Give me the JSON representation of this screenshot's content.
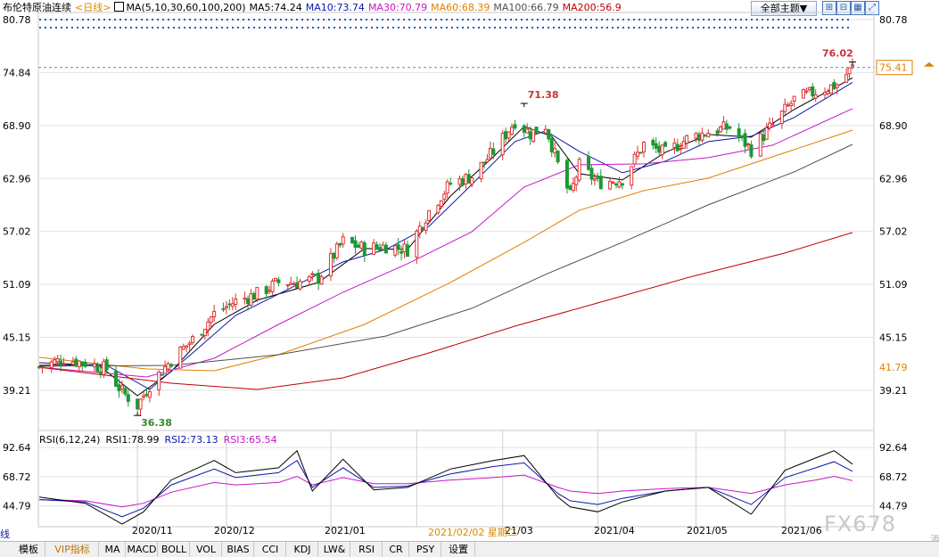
{
  "header": {
    "title": "布伦特原油连续",
    "period": "<日线>",
    "ma_legend": [
      {
        "label": "MA(5,10,30,60,100,200)",
        "color": "#000000"
      },
      {
        "label": "MA5:74.24",
        "color": "#000000"
      },
      {
        "label": "MA10:73.74",
        "color": "#0b18a8"
      },
      {
        "label": "MA30:70.79",
        "color": "#c716c7"
      },
      {
        "label": "MA60:68.39",
        "color": "#e08000"
      },
      {
        "label": "MA100:66.79",
        "color": "#505050"
      },
      {
        "label": "MA200:56.9",
        "color": "#c00000"
      }
    ],
    "theme_button": "全部主题▼",
    "tool_icons": [
      "zoom-in-icon",
      "zoom-out-icon",
      "grid-icon",
      "expand-icon",
      "fullscreen-icon"
    ]
  },
  "price_axis": {
    "left_ticks": [
      "80.78",
      "74.84",
      "68.90",
      "62.96",
      "57.02",
      "51.09",
      "45.15",
      "39.21"
    ],
    "right_ticks": [
      "80.78",
      "68.90",
      "62.96",
      "57.02",
      "51.09",
      "45.15",
      "39.21"
    ],
    "current_price_label": "75.41",
    "ma_edge_label": "41.79"
  },
  "rsi_legend": [
    {
      "label": "RSI(6,12,24)",
      "color": "#000000"
    },
    {
      "label": "RSI1:78.99",
      "color": "#000000"
    },
    {
      "label": "RSI2:73.13",
      "color": "#0b18a8"
    },
    {
      "label": "RSI3:65.54",
      "color": "#c716c7"
    }
  ],
  "rsi_axis": {
    "left_ticks": [
      "92.64",
      "68.72",
      "44.79"
    ],
    "right_ticks": [
      "92.64",
      "68.72",
      "44.79"
    ]
  },
  "x_axis": {
    "ticks": [
      "2020/11",
      "2020/12",
      "2021/01",
      "21/03",
      "2021/04",
      "2021/05",
      "2021/06"
    ],
    "hover_label": "2021/02/02 星期二"
  },
  "bottom_tabs": [
    "模板",
    "VIP指标",
    "MA",
    "MACD",
    "BOLL",
    "VOL",
    "BIAS",
    "CCI",
    "KDJ",
    "LW&",
    "RSI",
    "CR",
    "PSY",
    "设置"
  ],
  "bottom_edge_left": "线",
  "bottom_edge_right": "添",
  "watermark": "FX678",
  "colors": {
    "up": "#e03030",
    "down": "#1a9a30",
    "ma5": "#000000",
    "ma10": "#0b18a8",
    "ma30": "#c716c7",
    "ma60": "#e08000",
    "ma100": "#505050",
    "ma200": "#c00000",
    "dotted": "#1a5fb0",
    "grid": "#e2e2e2"
  },
  "chart_data": {
    "type": "candlestick",
    "title": "布伦特原油连续",
    "ylim": [
      36.0,
      80.78
    ],
    "high_annotation": {
      "value": "76.02",
      "date": "2021/06/23"
    },
    "mid_high_annotation": {
      "value": "71.38",
      "date": "2021/03/08"
    },
    "low_annotation": {
      "value": "36.38",
      "date": "2020/11/02"
    },
    "price_path": [
      [
        "2020/10/01",
        41.8
      ],
      [
        "2020/10/09",
        42.7
      ],
      [
        "2020/10/16",
        42.3
      ],
      [
        "2020/10/23",
        41.6
      ],
      [
        "2020/10/28",
        39.0
      ],
      [
        "2020/11/02",
        37.5
      ],
      [
        "2020/11/06",
        39.8
      ],
      [
        "2020/11/13",
        42.6
      ],
      [
        "2020/11/20",
        44.9
      ],
      [
        "2020/11/27",
        47.8
      ],
      [
        "2020/12/04",
        49.2
      ],
      [
        "2020/12/11",
        50.0
      ],
      [
        "2020/12/18",
        51.3
      ],
      [
        "2020/12/24",
        51.3
      ],
      [
        "2020/12/31",
        51.8
      ],
      [
        "2021/01/08",
        55.9
      ],
      [
        "2021/01/15",
        55.1
      ],
      [
        "2021/01/22",
        55.4
      ],
      [
        "2021/01/29",
        55.0
      ],
      [
        "2021/02/05",
        59.3
      ],
      [
        "2021/02/12",
        62.4
      ],
      [
        "2021/02/19",
        63.2
      ],
      [
        "2021/02/26",
        66.0
      ],
      [
        "2021/03/05",
        69.4
      ],
      [
        "2021/03/10",
        68.0
      ],
      [
        "2021/03/15",
        68.9
      ],
      [
        "2021/03/19",
        64.5
      ],
      [
        "2021/03/23",
        61.0
      ],
      [
        "2021/03/26",
        64.4
      ],
      [
        "2021/04/01",
        62.5
      ],
      [
        "2021/04/09",
        62.9
      ],
      [
        "2021/04/16",
        66.8
      ],
      [
        "2021/04/23",
        65.8
      ],
      [
        "2021/04/30",
        67.4
      ],
      [
        "2021/05/07",
        68.2
      ],
      [
        "2021/05/14",
        68.7
      ],
      [
        "2021/05/21",
        66.2
      ],
      [
        "2021/05/28",
        69.0
      ],
      [
        "2021/06/04",
        71.8
      ],
      [
        "2021/06/11",
        72.7
      ],
      [
        "2021/06/18",
        73.5
      ],
      [
        "2021/06/23",
        75.4
      ]
    ],
    "ma_paths": {
      "MA5": [
        [
          "2020/10/01",
          42.0
        ],
        [
          "2020/10/20",
          42.1
        ],
        [
          "2020/11/02",
          38.6
        ],
        [
          "2020/11/13",
          41.3
        ],
        [
          "2020/11/27",
          46.6
        ],
        [
          "2020/12/11",
          49.3
        ],
        [
          "2020/12/31",
          51.3
        ],
        [
          "2021/01/15",
          55.1
        ],
        [
          "2021/01/29",
          55.0
        ],
        [
          "2021/02/12",
          61.0
        ],
        [
          "2021/02/26",
          65.4
        ],
        [
          "2021/03/08",
          68.8
        ],
        [
          "2021/03/17",
          67.7
        ],
        [
          "2021/03/26",
          63.5
        ],
        [
          "2021/04/09",
          62.8
        ],
        [
          "2021/04/23",
          65.9
        ],
        [
          "2021/05/07",
          67.9
        ],
        [
          "2021/05/21",
          67.6
        ],
        [
          "2021/06/04",
          70.7
        ],
        [
          "2021/06/23",
          74.24
        ]
      ],
      "MA10": [
        [
          "2020/10/01",
          42.3
        ],
        [
          "2020/10/23",
          42.0
        ],
        [
          "2020/11/06",
          39.3
        ],
        [
          "2020/11/20",
          43.4
        ],
        [
          "2020/12/04",
          47.6
        ],
        [
          "2020/12/18",
          50.0
        ],
        [
          "2021/01/08",
          53.6
        ],
        [
          "2021/01/22",
          55.0
        ],
        [
          "2021/02/05",
          57.6
        ],
        [
          "2021/02/19",
          62.3
        ],
        [
          "2021/03/05",
          67.1
        ],
        [
          "2021/03/15",
          68.3
        ],
        [
          "2021/03/26",
          66.0
        ],
        [
          "2021/04/09",
          63.6
        ],
        [
          "2021/04/23",
          64.9
        ],
        [
          "2021/05/07",
          67.1
        ],
        [
          "2021/05/21",
          67.7
        ],
        [
          "2021/06/04",
          69.8
        ],
        [
          "2021/06/23",
          73.74
        ]
      ],
      "MA30": [
        [
          "2020/10/01",
          41.8
        ],
        [
          "2020/11/05",
          40.7
        ],
        [
          "2020/11/27",
          42.8
        ],
        [
          "2020/12/18",
          46.6
        ],
        [
          "2021/01/08",
          50.2
        ],
        [
          "2021/01/29",
          53.4
        ],
        [
          "2021/02/19",
          57.0
        ],
        [
          "2021/03/08",
          62.0
        ],
        [
          "2021/03/26",
          64.5
        ],
        [
          "2021/04/16",
          64.6
        ],
        [
          "2021/05/07",
          65.3
        ],
        [
          "2021/05/28",
          66.7
        ],
        [
          "2021/06/23",
          70.79
        ]
      ],
      "MA60": [
        [
          "2020/10/01",
          42.9
        ],
        [
          "2020/11/05",
          41.6
        ],
        [
          "2020/11/27",
          41.4
        ],
        [
          "2020/12/18",
          43.2
        ],
        [
          "2021/01/15",
          46.6
        ],
        [
          "2021/02/12",
          51.3
        ],
        [
          "2021/03/08",
          55.8
        ],
        [
          "2021/03/26",
          59.4
        ],
        [
          "2021/04/16",
          61.6
        ],
        [
          "2021/05/07",
          63.0
        ],
        [
          "2021/05/28",
          65.4
        ],
        [
          "2021/06/23",
          68.39
        ]
      ],
      "MA100": [
        [
          "2020/10/01",
          41.9
        ],
        [
          "2020/11/13",
          42.0
        ],
        [
          "2020/12/18",
          43.2
        ],
        [
          "2021/01/22",
          45.3
        ],
        [
          "2021/02/19",
          48.4
        ],
        [
          "2021/03/15",
          52.2
        ],
        [
          "2021/04/09",
          55.8
        ],
        [
          "2021/05/07",
          60.0
        ],
        [
          "2021/06/04",
          63.7
        ],
        [
          "2021/06/23",
          66.79
        ]
      ],
      "MA200": [
        [
          "2020/10/01",
          41.79
        ],
        [
          "2020/11/13",
          40.0
        ],
        [
          "2020/12/11",
          39.3
        ],
        [
          "2021/01/08",
          40.6
        ],
        [
          "2021/02/05",
          43.4
        ],
        [
          "2021/03/05",
          46.4
        ],
        [
          "2021/04/01",
          49.0
        ],
        [
          "2021/05/01",
          51.9
        ],
        [
          "2021/06/01",
          54.6
        ],
        [
          "2021/06/23",
          56.9
        ]
      ]
    },
    "rsi": {
      "ylim": [
        30,
        100
      ],
      "RSI1": [
        [
          "2020/10/01",
          52
        ],
        [
          "2020/10/16",
          47
        ],
        [
          "2020/10/28",
          30
        ],
        [
          "2020/11/04",
          40
        ],
        [
          "2020/11/13",
          66
        ],
        [
          "2020/11/27",
          82
        ],
        [
          "2020/12/04",
          72
        ],
        [
          "2020/12/18",
          76
        ],
        [
          "2020/12/24",
          90
        ],
        [
          "2020/12/29",
          57
        ],
        [
          "2021/01/08",
          83
        ],
        [
          "2021/01/18",
          58
        ],
        [
          "2021/01/29",
          60
        ],
        [
          "2021/02/12",
          75
        ],
        [
          "2021/02/26",
          82
        ],
        [
          "2021/03/08",
          86
        ],
        [
          "2021/03/19",
          52
        ],
        [
          "2021/03/23",
          44
        ],
        [
          "2021/04/01",
          40
        ],
        [
          "2021/04/09",
          48
        ],
        [
          "2021/04/23",
          57
        ],
        [
          "2021/05/07",
          60
        ],
        [
          "2021/05/21",
          38
        ],
        [
          "2021/06/01",
          74
        ],
        [
          "2021/06/11",
          84
        ],
        [
          "2021/06/17",
          90
        ],
        [
          "2021/06/23",
          78.99
        ]
      ],
      "RSI2": [
        [
          "2020/10/01",
          50
        ],
        [
          "2020/10/16",
          48
        ],
        [
          "2020/10/28",
          36
        ],
        [
          "2020/11/04",
          43
        ],
        [
          "2020/11/13",
          62
        ],
        [
          "2020/11/27",
          75
        ],
        [
          "2020/12/04",
          68
        ],
        [
          "2020/12/18",
          72
        ],
        [
          "2020/12/24",
          82
        ],
        [
          "2020/12/29",
          60
        ],
        [
          "2021/01/08",
          76
        ],
        [
          "2021/01/18",
          60
        ],
        [
          "2021/01/29",
          61
        ],
        [
          "2021/02/12",
          71
        ],
        [
          "2021/02/26",
          77
        ],
        [
          "2021/03/08",
          80
        ],
        [
          "2021/03/19",
          55
        ],
        [
          "2021/03/23",
          49
        ],
        [
          "2021/04/01",
          46
        ],
        [
          "2021/04/09",
          51
        ],
        [
          "2021/04/23",
          57
        ],
        [
          "2021/05/07",
          60
        ],
        [
          "2021/05/21",
          46
        ],
        [
          "2021/06/01",
          68
        ],
        [
          "2021/06/11",
          76
        ],
        [
          "2021/06/17",
          81
        ],
        [
          "2021/06/23",
          73.13
        ]
      ],
      "RSI3": [
        [
          "2020/10/01",
          50
        ],
        [
          "2020/10/16",
          49
        ],
        [
          "2020/10/28",
          44
        ],
        [
          "2020/11/04",
          47
        ],
        [
          "2020/11/13",
          56
        ],
        [
          "2020/11/27",
          64
        ],
        [
          "2020/12/04",
          62
        ],
        [
          "2020/12/18",
          64
        ],
        [
          "2020/12/24",
          69
        ],
        [
          "2020/12/29",
          62
        ],
        [
          "2021/01/08",
          68
        ],
        [
          "2021/01/18",
          63
        ],
        [
          "2021/01/29",
          63
        ],
        [
          "2021/02/12",
          66
        ],
        [
          "2021/02/26",
          68
        ],
        [
          "2021/03/08",
          70
        ],
        [
          "2021/03/19",
          60
        ],
        [
          "2021/03/23",
          57
        ],
        [
          "2021/04/01",
          55
        ],
        [
          "2021/04/09",
          57
        ],
        [
          "2021/04/23",
          59
        ],
        [
          "2021/05/07",
          60
        ],
        [
          "2021/05/21",
          55
        ],
        [
          "2021/06/01",
          62
        ],
        [
          "2021/06/11",
          66
        ],
        [
          "2021/06/17",
          69
        ],
        [
          "2021/06/23",
          65.54
        ]
      ]
    }
  }
}
